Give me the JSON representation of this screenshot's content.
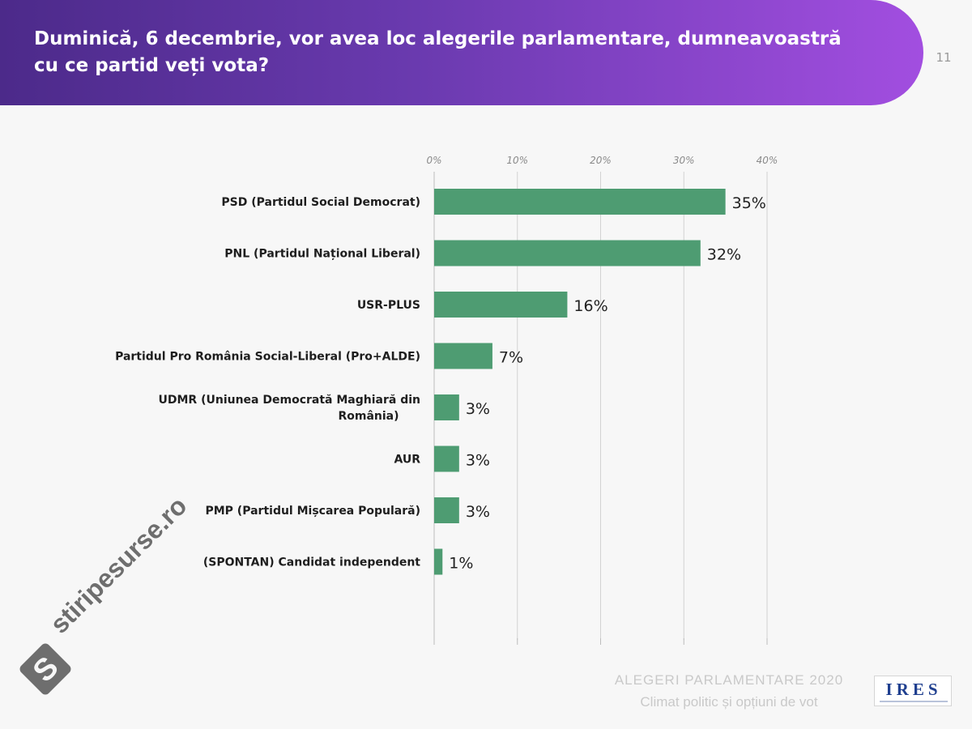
{
  "header": {
    "title": "Duminică, 6 decembrie, vor avea loc alegerile parlamentare, dumneavoastră cu ce partid veți vota?",
    "page_number": "11"
  },
  "footer": {
    "line1": "ALEGERI PARLAMENTARE 2020",
    "line2": "Climat politic și opțiuni de vot",
    "logo_text": "IRES"
  },
  "watermark": {
    "text": "stiripesurse.ro",
    "icon": "s-diamond-logo-icon"
  },
  "colors": {
    "bar": "#4e9c72",
    "header_start": "#4c2a8a",
    "header_end": "#a24ee0"
  },
  "chart_data": {
    "type": "bar",
    "orientation": "horizontal",
    "categories": [
      "PSD (Partidul Social Democrat)",
      "PNL (Partidul Național Liberal)",
      "USR-PLUS",
      "Partidul Pro România Social-Liberal (Pro+ALDE)",
      "UDMR (Uniunea Democrată Maghiară din România)",
      "AUR",
      "PMP (Partidul Mișcarea Populară)",
      "(SPONTAN) Candidat independent"
    ],
    "values": [
      35,
      32,
      16,
      7,
      3,
      3,
      3,
      1
    ],
    "value_labels": [
      "35%",
      "32%",
      "16%",
      "7%",
      "3%",
      "3%",
      "3%",
      "1%"
    ],
    "xlim": [
      0,
      40
    ],
    "x_ticks": [
      0,
      10,
      20,
      30,
      40
    ],
    "x_tick_labels": [
      "0%",
      "10%",
      "20%",
      "30%",
      "40%"
    ],
    "x_axis_position": "top",
    "grid": true,
    "legend": "none"
  }
}
